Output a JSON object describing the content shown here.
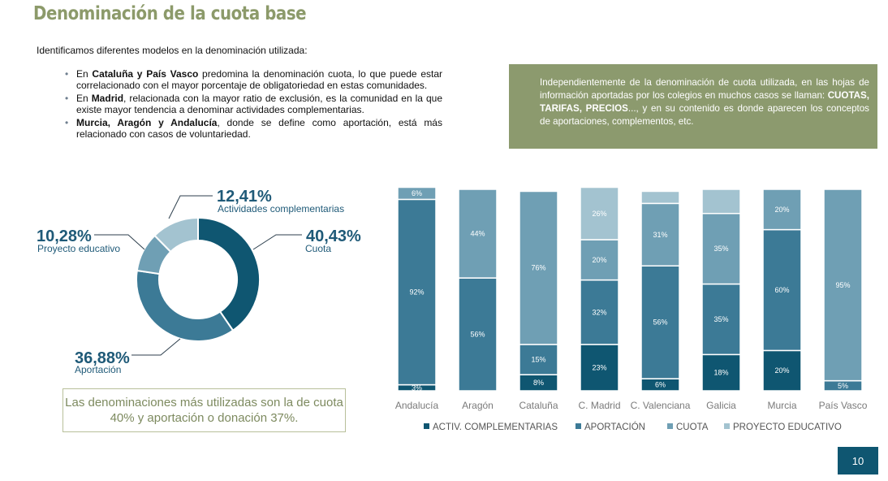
{
  "title": "Denominación de la cuota base",
  "intro": "Identificamos diferentes modelos en la denominación utilizada:",
  "bullets": [
    {
      "pre": "En ",
      "bold": "Cataluña y País Vasco",
      "post": " predomina la denominación cuota, lo que puede estar correlacionado con el mayor porcentaje de obligatoriedad en estas comunidades."
    },
    {
      "pre": "En ",
      "bold": "Madrid",
      "post": ", relacionada con la mayor ratio de exclusión, es la comunidad en la que existe mayor tendencia a denominar actividades complementarias."
    },
    {
      "pre": "",
      "bold": "Murcia, Aragón y Andalucía",
      "post": ", donde se define como aportación, está más relacionado con casos de voluntariedad."
    }
  ],
  "infobox": {
    "pre": "Independientemente de la denominación de cuota utilizada, en las hojas de información aportadas por los colegios en muchos casos se llaman: ",
    "bold": "CUOTAS, TARIFAS, PRECIOS",
    "post": "..., y en su contenido es donde aparecen los conceptos de aportaciones, complementos, etc."
  },
  "summary": "Las denominaciones más utilizadas son la de cuota 40% y aportación o donación 37%.",
  "page_number": "10",
  "colors": {
    "activ": "#0f5671",
    "aportacion": "#3c7a96",
    "cuota": "#6f9fb4",
    "proyecto": "#a3c3d0",
    "green": "#8c9a6e"
  },
  "chart_data": [
    {
      "type": "pie",
      "donut": true,
      "slices": [
        {
          "name": "Cuota",
          "value": 40.43,
          "label": "40,43%"
        },
        {
          "name": "Aportación",
          "value": 36.88,
          "label": "36,88%"
        },
        {
          "name": "Proyecto educativo",
          "value": 10.28,
          "label": "10,28%"
        },
        {
          "name": "Actividades complementarias",
          "value": 12.41,
          "label": "12,41%"
        }
      ]
    },
    {
      "type": "bar",
      "stacked": true,
      "categories": [
        "Andalucía",
        "Aragón",
        "Cataluña",
        "C. Madrid",
        "C. Valenciana",
        "Galicia",
        "Murcia",
        "País Vasco"
      ],
      "series": [
        {
          "name": "ACTIV. COMPLEMENTARIAS",
          "values": [
            3,
            0,
            8,
            23,
            6,
            18,
            20,
            0
          ],
          "labels": [
            "3%",
            "",
            "8%",
            "23%",
            "6%",
            "18%",
            "20%",
            ""
          ]
        },
        {
          "name": "APORTACIÓN",
          "values": [
            92,
            56,
            15,
            32,
            56,
            35,
            60,
            5
          ],
          "labels": [
            "92%",
            "56%",
            "15%",
            "32%",
            "56%",
            "35%",
            "60%",
            "5%"
          ]
        },
        {
          "name": "CUOTA",
          "values": [
            6,
            44,
            76,
            20,
            31,
            35,
            20,
            95
          ],
          "labels": [
            "6%",
            "44%",
            "76%",
            "20%",
            "31%",
            "35%",
            "20%",
            "95%"
          ]
        },
        {
          "name": "PROYECTO EDUCATIVO",
          "values": [
            0,
            0,
            0,
            26,
            6,
            12,
            0,
            0
          ],
          "labels": [
            "",
            "",
            "",
            "26%",
            "",
            "",
            "",
            ""
          ]
        }
      ],
      "ylim": [
        0,
        100
      ],
      "legend": "bottom"
    }
  ]
}
